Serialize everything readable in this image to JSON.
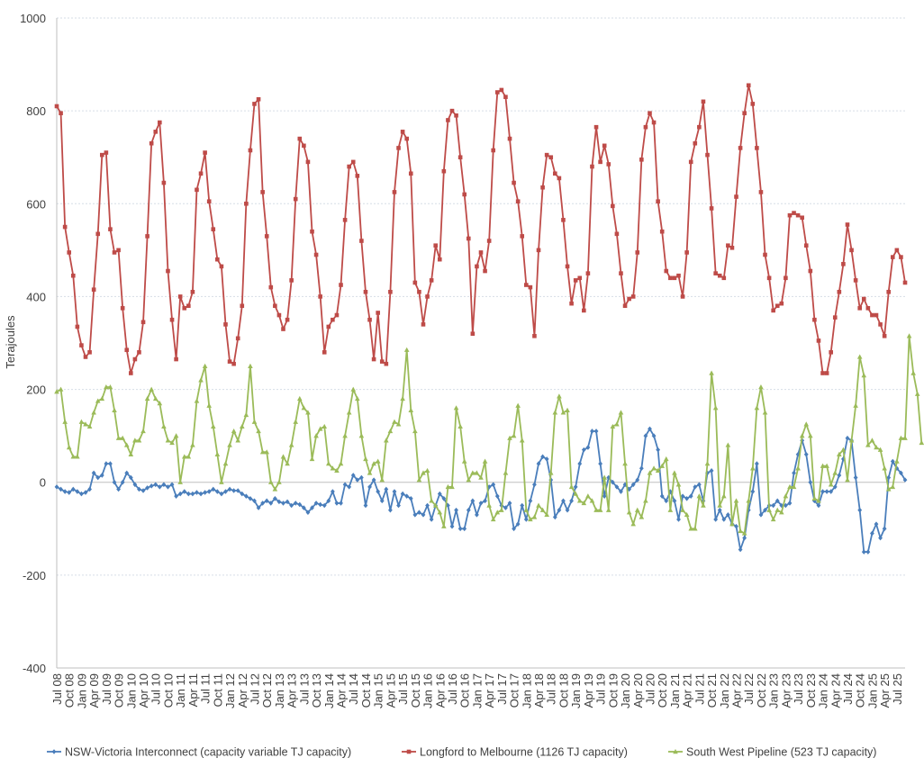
{
  "chart_data": {
    "type": "line",
    "ylabel": "Terajoules",
    "ylim": [
      -400,
      1000
    ],
    "yticks": [
      -400,
      -200,
      0,
      200,
      400,
      600,
      800,
      1000
    ],
    "grid": "horizontal",
    "legend_position": "bottom",
    "start_month": "2008-07",
    "x_tick_labels": [
      "Jul 08",
      "Oct 08",
      "Jan 09",
      "Apr 09",
      "Jul 09",
      "Oct 09",
      "Jan 10",
      "Apr 10",
      "Jul 10",
      "Oct 10",
      "Jan 11",
      "Apr 11",
      "Jul 11",
      "Oct 11",
      "Jan 12",
      "Apr 12",
      "Jul 12",
      "Oct 12",
      "Jan 13",
      "Apr 13",
      "Jul 13",
      "Oct 13",
      "Jan 14",
      "Apr 14",
      "Jul 14",
      "Oct 14",
      "Jan 15",
      "Apr 15",
      "Jul 15",
      "Oct 15",
      "Jan 16",
      "Apr 16",
      "Jul 16",
      "Oct 16",
      "Jan 17",
      "Apr 17",
      "Jul 17",
      "Oct 17",
      "Jan 18",
      "Apr 18",
      "Jul 18",
      "Oct 18",
      "Jan 19",
      "Apr 19",
      "Jul 19",
      "Oct 19",
      "Jan 20",
      "Apr 20",
      "Jul 20",
      "Oct 20",
      "Jan 21",
      "Apr 21",
      "Jul 21",
      "Oct 21",
      "Jan 22",
      "Apr 22",
      "Jul 22",
      "Oct 22",
      "Jan 23",
      "Apr 23",
      "Jul 23",
      "Oct 23",
      "Jan 24",
      "Apr 24",
      "Jul 24",
      "Oct 24",
      "Jan 25",
      "Apr 25",
      "Jul 25"
    ],
    "series": [
      {
        "name": "NSW-Victoria Interconnect (capacity variable TJ capacity)",
        "color": "#4a7ebb",
        "marker": "diamond",
        "values": [
          -10,
          -15,
          -20,
          -22,
          -15,
          -20,
          -25,
          -22,
          -15,
          20,
          10,
          15,
          40,
          40,
          0,
          -15,
          0,
          20,
          10,
          -5,
          -15,
          -18,
          -12,
          -8,
          -5,
          -10,
          -5,
          -10,
          -5,
          -30,
          -25,
          -20,
          -25,
          -25,
          -22,
          -25,
          -22,
          -20,
          -15,
          -20,
          -25,
          -20,
          -15,
          -18,
          -18,
          -25,
          -30,
          -35,
          -40,
          -55,
          -45,
          -40,
          -45,
          -35,
          -42,
          -45,
          -42,
          -50,
          -45,
          -48,
          -55,
          -65,
          -55,
          -45,
          -48,
          -50,
          -40,
          -20,
          -45,
          -45,
          -5,
          -10,
          15,
          5,
          10,
          -50,
          -10,
          5,
          -20,
          -40,
          -15,
          -60,
          -20,
          -50,
          -25,
          -30,
          -35,
          -70,
          -65,
          -70,
          -50,
          -80,
          -50,
          -25,
          -35,
          -50,
          -95,
          -60,
          -100,
          -100,
          -60,
          -40,
          -70,
          -45,
          -40,
          -10,
          -5,
          -30,
          -50,
          -55,
          -45,
          -100,
          -90,
          -50,
          -80,
          -40,
          -5,
          40,
          55,
          50,
          5,
          -75,
          -60,
          -40,
          -60,
          -40,
          -10,
          40,
          70,
          75,
          110,
          110,
          40,
          -30,
          10,
          0,
          -10,
          -20,
          -5,
          -15,
          -5,
          5,
          30,
          100,
          115,
          100,
          70,
          -30,
          -40,
          -20,
          -40,
          -80,
          -30,
          -35,
          -30,
          -10,
          -5,
          -40,
          20,
          25,
          -80,
          -60,
          -80,
          -70,
          -90,
          -95,
          -145,
          -120,
          -60,
          -20,
          40,
          -70,
          -60,
          -50,
          -50,
          -40,
          -50,
          -50,
          -45,
          20,
          60,
          90,
          60,
          0,
          -40,
          -50,
          -20,
          -20,
          -20,
          -10,
          15,
          50,
          95,
          90,
          10,
          -60,
          -150,
          -150,
          -110,
          -90,
          -120,
          -100,
          10,
          45,
          30,
          20,
          5
        ]
      },
      {
        "name": "Longford to Melbourne (1126 TJ capacity)",
        "color": "#be4b48",
        "marker": "square",
        "values": [
          810,
          795,
          550,
          495,
          445,
          335,
          295,
          270,
          280,
          415,
          535,
          705,
          710,
          545,
          495,
          500,
          375,
          285,
          235,
          265,
          280,
          345,
          530,
          730,
          755,
          775,
          645,
          455,
          350,
          265,
          400,
          375,
          380,
          410,
          630,
          665,
          710,
          605,
          545,
          480,
          465,
          340,
          260,
          255,
          310,
          380,
          600,
          715,
          815,
          825,
          625,
          530,
          420,
          380,
          360,
          330,
          350,
          435,
          610,
          740,
          725,
          690,
          540,
          490,
          400,
          280,
          335,
          350,
          360,
          425,
          565,
          680,
          690,
          660,
          520,
          410,
          350,
          265,
          365,
          260,
          255,
          410,
          625,
          720,
          755,
          740,
          665,
          430,
          410,
          340,
          400,
          435,
          510,
          480,
          670,
          780,
          800,
          790,
          700,
          620,
          525,
          320,
          465,
          495,
          455,
          520,
          715,
          840,
          845,
          830,
          740,
          645,
          605,
          530,
          425,
          420,
          315,
          500,
          635,
          705,
          700,
          665,
          655,
          565,
          465,
          385,
          435,
          440,
          370,
          450,
          680,
          765,
          690,
          725,
          685,
          595,
          535,
          450,
          380,
          395,
          400,
          495,
          695,
          765,
          795,
          775,
          605,
          540,
          455,
          440,
          440,
          445,
          400,
          495,
          690,
          730,
          765,
          820,
          705,
          590,
          450,
          445,
          440,
          510,
          505,
          615,
          720,
          795,
          855,
          815,
          720,
          625,
          490,
          440,
          370,
          380,
          385,
          440,
          575,
          580,
          575,
          570,
          510,
          455,
          350,
          305,
          235,
          235,
          280,
          355,
          410,
          470,
          555,
          500,
          435,
          375,
          395,
          375,
          360,
          360,
          340,
          315,
          410,
          485,
          500,
          485,
          430
        ]
      },
      {
        "name": "South West Pipeline (523 TJ capacity)",
        "color": "#9bbb59",
        "marker": "triangle",
        "values": [
          195,
          200,
          130,
          75,
          55,
          55,
          130,
          125,
          120,
          150,
          175,
          180,
          205,
          205,
          155,
          95,
          95,
          80,
          60,
          90,
          90,
          110,
          180,
          200,
          180,
          170,
          120,
          90,
          85,
          100,
          0,
          55,
          55,
          80,
          175,
          220,
          250,
          165,
          120,
          60,
          0,
          40,
          80,
          110,
          90,
          120,
          145,
          250,
          130,
          110,
          65,
          65,
          0,
          -15,
          0,
          55,
          40,
          80,
          130,
          180,
          160,
          150,
          50,
          100,
          115,
          120,
          40,
          30,
          25,
          40,
          100,
          150,
          200,
          180,
          100,
          50,
          20,
          40,
          45,
          5,
          90,
          110,
          130,
          125,
          180,
          285,
          155,
          110,
          5,
          20,
          25,
          -40,
          -50,
          -65,
          -95,
          -10,
          -10,
          160,
          120,
          45,
          5,
          20,
          20,
          10,
          45,
          -50,
          -80,
          -65,
          -60,
          20,
          95,
          100,
          165,
          90,
          -60,
          -80,
          -75,
          -50,
          -60,
          -70,
          20,
          150,
          185,
          150,
          155,
          -10,
          -25,
          -40,
          -45,
          -30,
          -40,
          -60,
          -60,
          10,
          -60,
          120,
          125,
          150,
          40,
          -65,
          -90,
          -60,
          -75,
          -40,
          20,
          30,
          25,
          35,
          50,
          -60,
          20,
          -5,
          -60,
          -70,
          -100,
          -100,
          -30,
          -50,
          40,
          235,
          160,
          -50,
          -30,
          80,
          -90,
          -40,
          -105,
          -110,
          -40,
          30,
          160,
          205,
          150,
          -60,
          -80,
          -60,
          -65,
          -30,
          -10,
          -10,
          30,
          100,
          125,
          100,
          -35,
          -40,
          35,
          35,
          -5,
          20,
          60,
          70,
          5,
          90,
          165,
          270,
          230,
          80,
          90,
          75,
          70,
          30,
          -15,
          -10,
          45,
          95,
          95,
          315,
          235,
          190,
          85
        ]
      }
    ]
  }
}
